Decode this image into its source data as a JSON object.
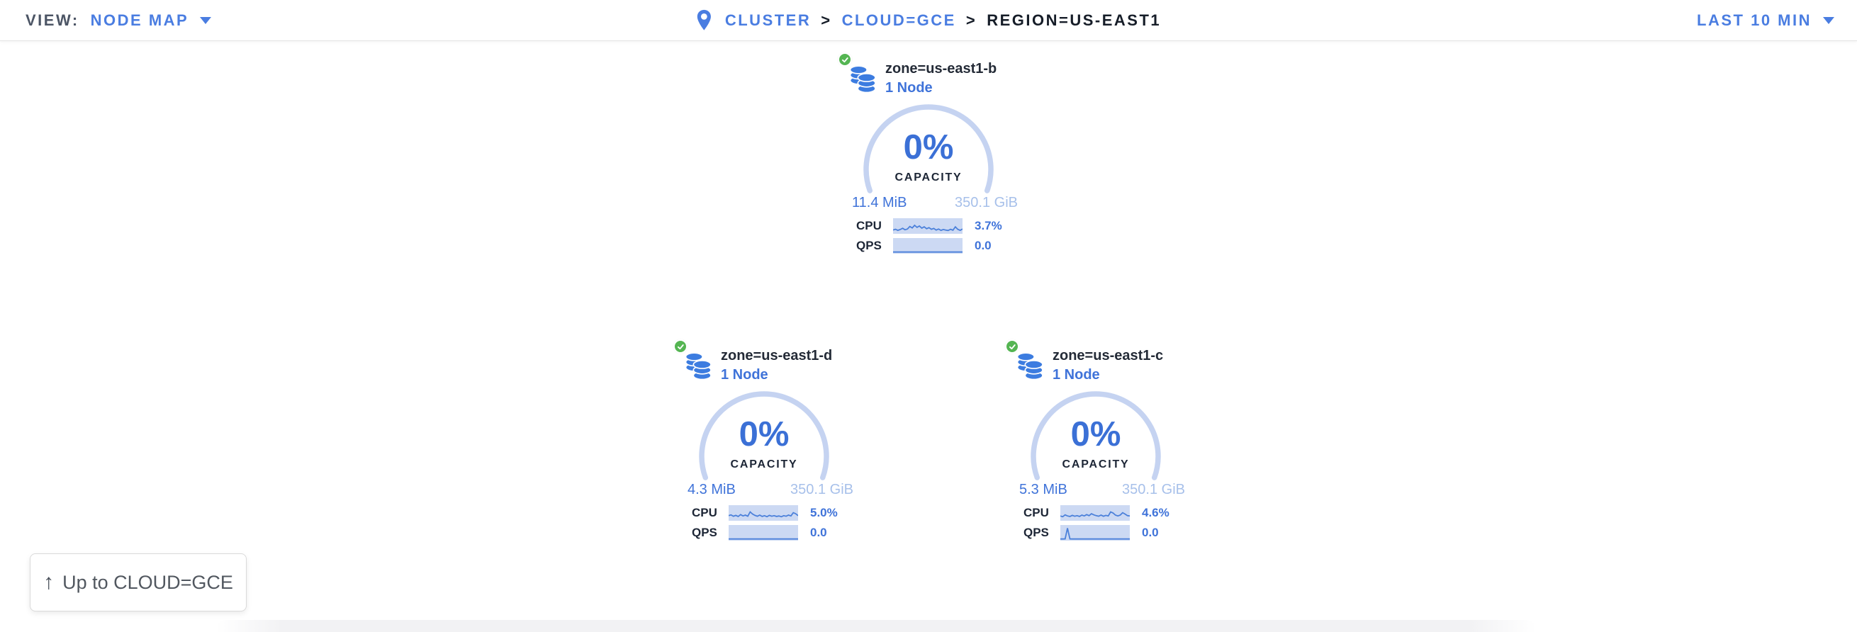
{
  "header": {
    "view": {
      "label": "VIEW:",
      "value": "NODE MAP"
    },
    "breadcrumb": {
      "cluster": "CLUSTER",
      "separator": ">",
      "cloud": "CLOUD=GCE",
      "region": "REGION=US-EAST1"
    },
    "time_range": "LAST 10 MIN"
  },
  "zones": [
    {
      "name": "zone=us-east1-b",
      "nodes": "1 Node",
      "capacity_pct": "0%",
      "capacity_label": "CAPACITY",
      "used": "11.4 MiB",
      "total": "350.1 GiB",
      "cpu_label": "CPU",
      "cpu_value": "3.7%",
      "qps_label": "QPS",
      "qps_value": "0.0",
      "cpu_spark": [
        0.2,
        0.26,
        0.18,
        0.24,
        0.33,
        0.22,
        0.28,
        0.47,
        0.36,
        0.55,
        0.4,
        0.5,
        0.34,
        0.44,
        0.3,
        0.38,
        0.26,
        0.32,
        0.2,
        0.28,
        0.18,
        0.24,
        0.2,
        0.17,
        0.26,
        0.19,
        0.44,
        0.26,
        0.18,
        0.28
      ],
      "qps_spark": [
        0.04,
        0.04,
        0.04,
        0.04,
        0.04,
        0.04,
        0.04,
        0.04,
        0.04,
        0.04,
        0.04,
        0.04,
        0.04,
        0.04,
        0.04,
        0.04,
        0.04,
        0.04,
        0.04,
        0.04,
        0.04,
        0.04,
        0.04,
        0.04,
        0.04,
        0.04,
        0.04,
        0.04,
        0.04,
        0.04
      ]
    },
    {
      "name": "zone=us-east1-d",
      "nodes": "1 Node",
      "capacity_pct": "0%",
      "capacity_label": "CAPACITY",
      "used": "4.3 MiB",
      "total": "350.1 GiB",
      "cpu_label": "CPU",
      "cpu_value": "5.0%",
      "qps_label": "QPS",
      "qps_value": "0.0",
      "cpu_spark": [
        0.3,
        0.36,
        0.26,
        0.32,
        0.24,
        0.38,
        0.28,
        0.34,
        0.26,
        0.58,
        0.42,
        0.32,
        0.26,
        0.34,
        0.24,
        0.3,
        0.22,
        0.32,
        0.26,
        0.3,
        0.24,
        0.28,
        0.22,
        0.3,
        0.26,
        0.34,
        0.28,
        0.52,
        0.44,
        0.3
      ],
      "qps_spark": [
        0.04,
        0.04,
        0.04,
        0.04,
        0.04,
        0.04,
        0.04,
        0.04,
        0.04,
        0.04,
        0.04,
        0.04,
        0.04,
        0.04,
        0.04,
        0.04,
        0.04,
        0.04,
        0.04,
        0.04,
        0.04,
        0.04,
        0.04,
        0.04,
        0.04,
        0.04,
        0.04,
        0.04,
        0.04,
        0.04
      ]
    },
    {
      "name": "zone=us-east1-c",
      "nodes": "1 Node",
      "capacity_pct": "0%",
      "capacity_label": "CAPACITY",
      "used": "5.3 MiB",
      "total": "350.1 GiB",
      "cpu_label": "CPU",
      "cpu_value": "4.6%",
      "qps_label": "QPS",
      "qps_value": "0.0",
      "cpu_spark": [
        0.28,
        0.22,
        0.36,
        0.28,
        0.24,
        0.32,
        0.26,
        0.3,
        0.24,
        0.34,
        0.28,
        0.38,
        0.3,
        0.44,
        0.36,
        0.3,
        0.26,
        0.34,
        0.26,
        0.32,
        0.28,
        0.58,
        0.5,
        0.34,
        0.28,
        0.34,
        0.52,
        0.42,
        0.3,
        0.28
      ],
      "qps_spark": [
        0.04,
        0.04,
        0.05,
        0.85,
        0.05,
        0.04,
        0.04,
        0.04,
        0.04,
        0.04,
        0.04,
        0.04,
        0.04,
        0.04,
        0.04,
        0.04,
        0.04,
        0.04,
        0.04,
        0.04,
        0.04,
        0.04,
        0.04,
        0.04,
        0.04,
        0.04,
        0.04,
        0.04,
        0.04,
        0.04
      ]
    }
  ],
  "up_button": {
    "arrow": "↑",
    "label": "Up to CLOUD=GCE"
  },
  "colors": {
    "header_link": "#4a7de1",
    "accent": "#3f73d9",
    "gauge_arc": "#c5d3f1",
    "spark_bg": "#ccd9f3",
    "spark_line": "#4b80da",
    "dark_text": "#1d2636",
    "total_text": "#a7c0ea",
    "status_green": "#54b552"
  }
}
